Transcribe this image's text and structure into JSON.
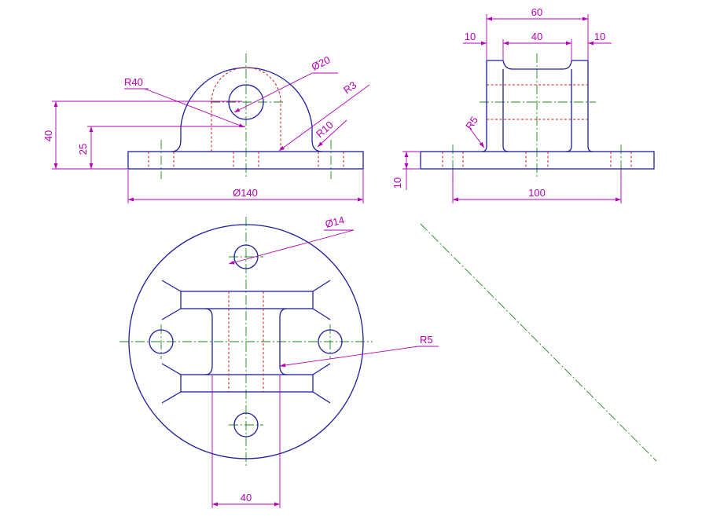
{
  "colors": {
    "object_line": "#1e1ea0",
    "hidden_line": "#c81e1e",
    "center_line": "#1a8a1a",
    "dimension": "#b400b4"
  },
  "front_view": {
    "dims": {
      "r40": "R40",
      "d20": "Ø20",
      "r3": "R3",
      "r10": "R10",
      "h40": "40",
      "h25": "25",
      "d140": "Ø140"
    }
  },
  "side_view": {
    "dims": {
      "w60": "60",
      "w10_left": "10",
      "w40": "40",
      "w10_right": "10",
      "r5": "R5",
      "h10": "10",
      "w100": "100"
    }
  },
  "top_view": {
    "dims": {
      "d14": "Ø14",
      "r5": "R5",
      "w40": "40"
    }
  }
}
